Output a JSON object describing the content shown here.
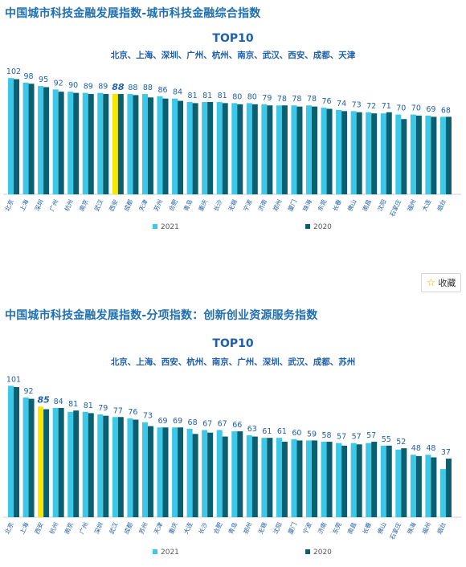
{
  "chart_data": [
    {
      "type": "bar",
      "header": "中国城市科技金融发展指数-城市科技金融综合指数",
      "title": "TOP10",
      "subtitle": "北京、上海、深圳、广州、杭州、南京、武汉、西安、成都、天津",
      "categories": [
        "北京",
        "上海",
        "深圳",
        "广州",
        "杭州",
        "南京",
        "武汉",
        "西安",
        "成都",
        "天津",
        "苏州",
        "合肥",
        "青岛",
        "重庆",
        "长沙",
        "无锡",
        "宁波",
        "济南",
        "郑州",
        "厦门",
        "珠海",
        "东莞",
        "长春",
        "佛山",
        "南昌",
        "沈阳",
        "石家庄",
        "福州",
        "大连",
        "烟台"
      ],
      "value_labels": [
        102,
        98,
        95,
        92,
        90,
        89,
        89,
        88,
        88,
        88,
        86,
        84,
        81,
        81,
        81,
        80,
        80,
        79,
        78,
        78,
        78,
        76,
        74,
        73,
        72,
        71,
        70,
        70,
        69,
        68
      ],
      "highlight_index": 7,
      "highlight_color": "#f7e600",
      "series": [
        {
          "name": "2021",
          "color": "#3cc8e6",
          "values": [
            102,
            98,
            95,
            92,
            90,
            89,
            89,
            88,
            88,
            88,
            86,
            84,
            81,
            81,
            81,
            80,
            80,
            79,
            78,
            78,
            78,
            76,
            74,
            73,
            72,
            71,
            70,
            70,
            69,
            68
          ]
        },
        {
          "name": "2020",
          "color": "#0a6070",
          "values": [
            101,
            97,
            94,
            90,
            89,
            88,
            88,
            88,
            87,
            85,
            84,
            82,
            80,
            81,
            80,
            79,
            79,
            78,
            78,
            77,
            77,
            75,
            73,
            72,
            71,
            72,
            66,
            69,
            68,
            68
          ]
        }
      ],
      "legend_position": "bottom",
      "grid": false
    },
    {
      "type": "bar",
      "header": "中国城市科技金融发展指数-分项指数：创新创业资源服务指数",
      "title": "TOP10",
      "subtitle": "北京、上海、西安、杭州、南京、广州、深圳、武汉、成都、苏州",
      "categories": [
        "北京",
        "上海",
        "西安",
        "杭州",
        "南京",
        "广州",
        "深圳",
        "武汉",
        "成都",
        "苏州",
        "天津",
        "重庆",
        "大连",
        "长沙",
        "合肥",
        "青岛",
        "郑州",
        "无锡",
        "沈阳",
        "厦门",
        "宁波",
        "济南",
        "东莞",
        "南昌",
        "长春",
        "佛山",
        "石家庄",
        "珠海",
        "福州",
        "烟台"
      ],
      "value_labels": [
        101,
        92,
        85,
        84,
        81,
        81,
        79,
        77,
        76,
        73,
        69,
        69,
        68,
        67,
        67,
        66,
        63,
        61,
        61,
        60,
        59,
        58,
        57,
        57,
        57,
        55,
        52,
        48,
        48,
        37
      ],
      "highlight_index": 2,
      "highlight_color": "#f7e600",
      "series": [
        {
          "name": "2021",
          "color": "#3cc8e6",
          "values": [
            101,
            92,
            85,
            84,
            81,
            81,
            79,
            77,
            76,
            73,
            69,
            69,
            68,
            67,
            67,
            66,
            63,
            61,
            61,
            60,
            59,
            58,
            57,
            57,
            57,
            55,
            52,
            48,
            48,
            37
          ]
        },
        {
          "name": "2020",
          "color": "#0a6070",
          "values": [
            100,
            91,
            83,
            84,
            82,
            80,
            78,
            77,
            75,
            70,
            69,
            69,
            64,
            65,
            62,
            66,
            62,
            61,
            58,
            59,
            59,
            58,
            55,
            56,
            58,
            55,
            53,
            47,
            46,
            45
          ]
        }
      ],
      "legend_position": "bottom",
      "grid": false
    }
  ],
  "ui": {
    "favorite_label": "收藏",
    "favorite_icon": "star-icon"
  }
}
